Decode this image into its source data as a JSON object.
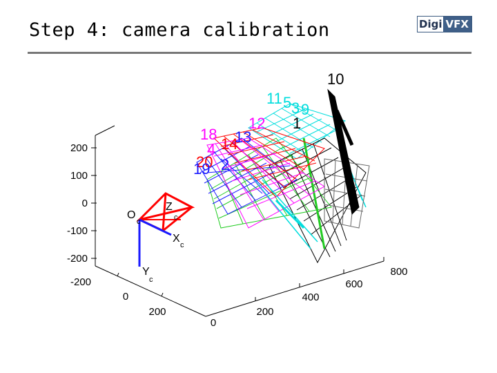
{
  "slide": {
    "title": "Step 4: camera calibration",
    "logo_left": "Digi",
    "logo_right": "VFX"
  },
  "axes": {
    "z_ticks": [
      "200",
      "100",
      "0",
      "-100",
      "-200"
    ],
    "x_ticks": [
      "-200",
      "0",
      "200"
    ],
    "y_ticks": [
      "0",
      "200",
      "400",
      "600",
      "800"
    ]
  },
  "camera": {
    "origin": "O",
    "origin_sub": "c",
    "x_axis": "X",
    "x_sub": "c",
    "y_axis": "Y",
    "y_sub": "c",
    "z_axis": "Z",
    "z_sub": "c"
  },
  "plane_labels": [
    "10",
    "11",
    "5",
    "3",
    "9",
    "12",
    "18",
    "13",
    "14",
    "20",
    "19",
    "2",
    "4",
    "1"
  ],
  "colors": {
    "black": "#000000",
    "red": "#ff0000",
    "blue": "#1a1aff",
    "magenta": "#ff00ff",
    "cyan": "#00dddd",
    "green": "#22cc22"
  }
}
